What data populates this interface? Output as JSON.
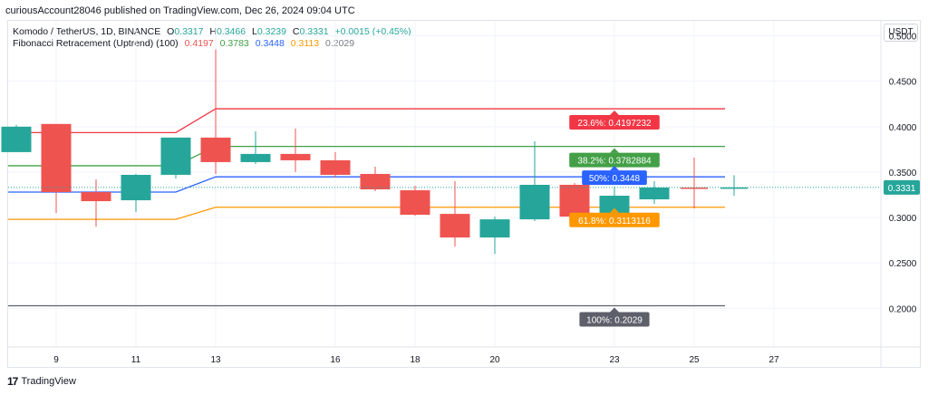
{
  "header": {
    "published": "curiousAccount28046 published on TradingView.com, Dec 26, 2024 09:04 UTC"
  },
  "legend": {
    "symbol": "Komodo / TetherUS, 1D, BINANCE",
    "o_label": "O",
    "o": "0.3317",
    "h_label": "H",
    "h": "0.3466",
    "l_label": "L",
    "l": "0.3239",
    "c_label": "C",
    "c": "0.3331",
    "change": "+0.0015 (+0.45%)",
    "fib_name": "Fibonacci Retracement (Uptrend) (100)",
    "fib_values": [
      "0.4197",
      "0.3783",
      "0.3448",
      "0.3113",
      "0.2029"
    ]
  },
  "currency_button": "USDT",
  "footer": {
    "brand": "TradingView",
    "logo": "17"
  },
  "colors": {
    "up": "#26a69a",
    "down": "#ef5350",
    "fib236": "#f23645",
    "fib382": "#43a047",
    "fib50": "#2962ff",
    "fib618": "#ff9800",
    "fib100": "#5d606b"
  },
  "chart_data": {
    "type": "candlestick",
    "x_ticks": [
      "9",
      "11",
      "13",
      "16",
      "18",
      "20",
      "23",
      "25",
      "27"
    ],
    "y_ticks": [
      "0.5000",
      "0.4500",
      "0.4000",
      "0.3500",
      "0.3000",
      "0.2500",
      "0.2000"
    ],
    "ylim": [
      0.1575,
      0.5165
    ],
    "last_price_label": "0.3331",
    "candles": [
      {
        "day": 8,
        "o": 0.372,
        "h": 0.402,
        "l": 0.372,
        "c": 0.4
      },
      {
        "day": 9,
        "o": 0.403,
        "h": 0.403,
        "l": 0.305,
        "c": 0.328
      },
      {
        "day": 10,
        "o": 0.328,
        "h": 0.342,
        "l": 0.29,
        "c": 0.318
      },
      {
        "day": 11,
        "o": 0.319,
        "h": 0.348,
        "l": 0.306,
        "c": 0.347
      },
      {
        "day": 12,
        "o": 0.347,
        "h": 0.388,
        "l": 0.343,
        "c": 0.388
      },
      {
        "day": 13,
        "o": 0.388,
        "h": 0.485,
        "l": 0.348,
        "c": 0.361
      },
      {
        "day": 14,
        "o": 0.361,
        "h": 0.395,
        "l": 0.359,
        "c": 0.37
      },
      {
        "day": 15,
        "o": 0.37,
        "h": 0.398,
        "l": 0.35,
        "c": 0.363
      },
      {
        "day": 16,
        "o": 0.363,
        "h": 0.372,
        "l": 0.344,
        "c": 0.347
      },
      {
        "day": 17,
        "o": 0.348,
        "h": 0.356,
        "l": 0.329,
        "c": 0.331
      },
      {
        "day": 18,
        "o": 0.33,
        "h": 0.335,
        "l": 0.302,
        "c": 0.303
      },
      {
        "day": 19,
        "o": 0.304,
        "h": 0.34,
        "l": 0.268,
        "c": 0.278
      },
      {
        "day": 20,
        "o": 0.278,
        "h": 0.301,
        "l": 0.26,
        "c": 0.298
      },
      {
        "day": 21,
        "o": 0.298,
        "h": 0.384,
        "l": 0.296,
        "c": 0.336
      },
      {
        "day": 22,
        "o": 0.336,
        "h": 0.338,
        "l": 0.298,
        "c": 0.301
      },
      {
        "day": 23,
        "o": 0.302,
        "h": 0.334,
        "l": 0.3,
        "c": 0.324
      },
      {
        "day": 24,
        "o": 0.32,
        "h": 0.34,
        "l": 0.315,
        "c": 0.333
      },
      {
        "day": 25,
        "o": 0.333,
        "h": 0.366,
        "l": 0.31,
        "c": 0.332
      },
      {
        "day": 26,
        "o": 0.3317,
        "h": 0.3466,
        "l": 0.3239,
        "c": 0.3331
      }
    ],
    "fib_levels": [
      {
        "level": "23.6%",
        "value": 0.4197232,
        "label": "23.6%: 0.4197232",
        "color": "#f23645",
        "show_label": true
      },
      {
        "level": "38.2%",
        "value": 0.3782884,
        "label": "38.2%: 0.3782884",
        "color": "#43a047",
        "show_label": true
      },
      {
        "level": "50%",
        "value": 0.3448,
        "label": "50%: 0.3448",
        "color": "#2962ff",
        "show_label": true
      },
      {
        "level": "61.8%",
        "value": 0.3113116,
        "label": "61.8%: 0.3113116",
        "color": "#ff9800",
        "show_label": true
      },
      {
        "level": "100%",
        "value": 0.2029,
        "label": "100%: 0.2029",
        "color": "#5d606b",
        "show_label": true
      }
    ],
    "fib_early_values": {
      "23.6%": 0.3935,
      "38.2%": 0.357,
      "50%": 0.328,
      "61.8%": 0.298
    }
  }
}
